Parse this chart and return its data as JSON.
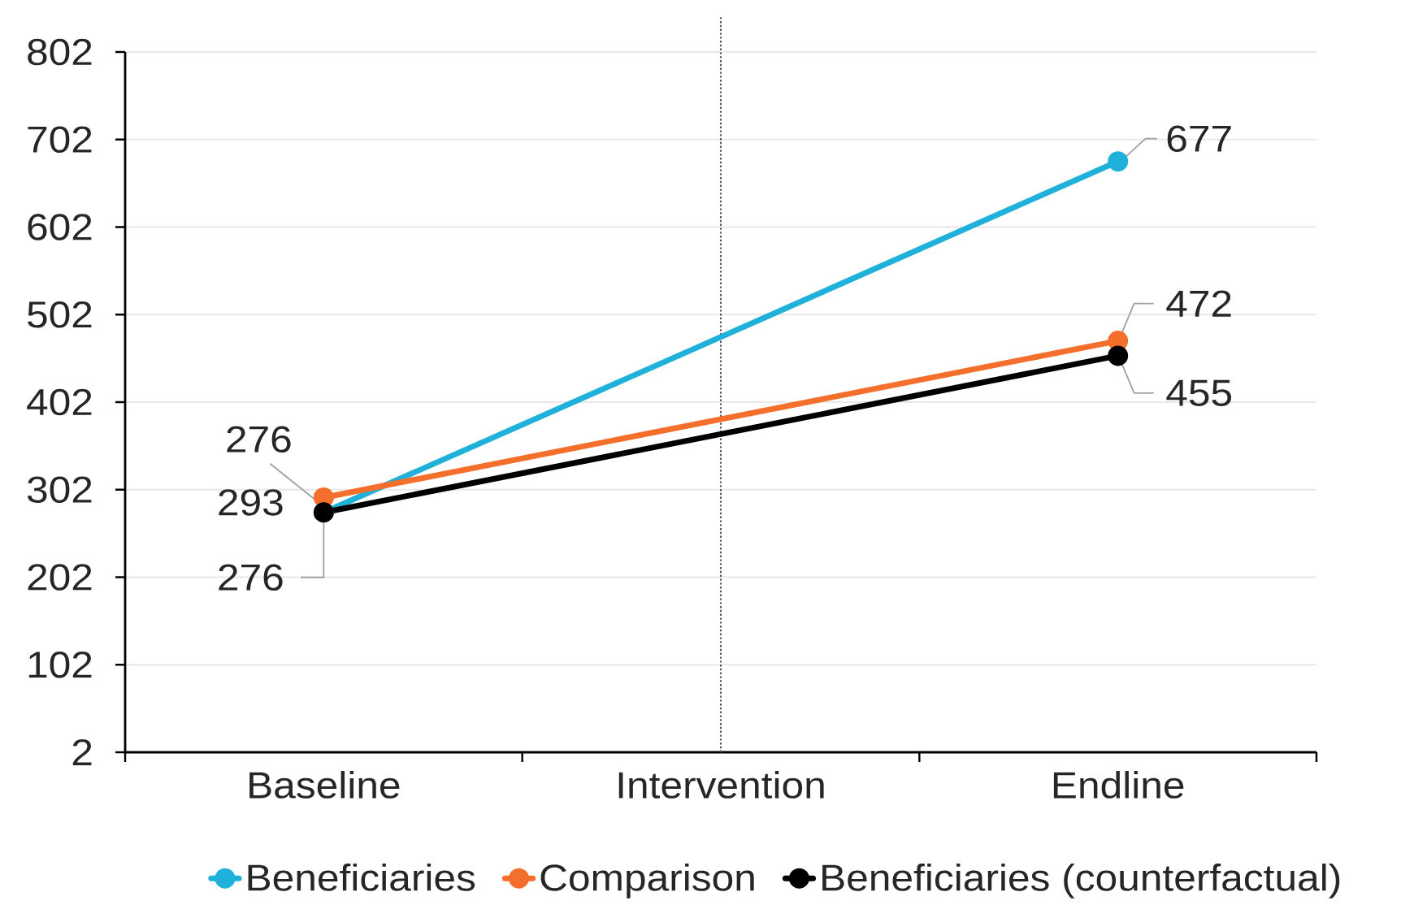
{
  "chart_data": {
    "type": "line",
    "categories": [
      "Baseline",
      "Intervention",
      "Endline"
    ],
    "series": [
      {
        "name": "Beneficiaries",
        "color": "#1fb1d9",
        "values": [
          276,
          null,
          677
        ]
      },
      {
        "name": "Comparison",
        "color": "#f36f2b",
        "values": [
          293,
          null,
          472
        ]
      },
      {
        "name": "Beneficiaries (counterfactual)",
        "color": "#000000",
        "values": [
          276,
          null,
          455
        ]
      }
    ],
    "ylim": [
      2,
      802
    ],
    "yticks": [
      2,
      102,
      202,
      302,
      402,
      502,
      602,
      702,
      802
    ],
    "grid": "y",
    "legend": "bottom",
    "marker": "circle",
    "line_style": "solid",
    "data_labels": true,
    "ref_lines": [
      {
        "axis": "x",
        "value": "Intervention",
        "color": "#555555",
        "line_style": "dotted"
      }
    ]
  }
}
